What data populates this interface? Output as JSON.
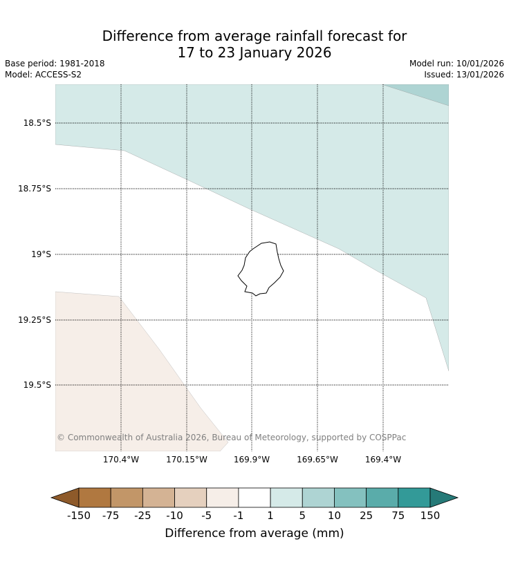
{
  "title": {
    "line1": "Difference from average rainfall forecast for",
    "line2": "17 to 23 January 2026"
  },
  "meta": {
    "base_period": "Base period: 1981-2018",
    "model": "Model: ACCESS-S2",
    "model_run": "Model run: 10/01/2026",
    "issued": "Issued: 13/01/2026"
  },
  "map": {
    "lat_labels": [
      "18.5°S",
      "18.75°S",
      "19°S",
      "19.25°S",
      "19.5°S"
    ],
    "lon_labels": [
      "170.4°W",
      "170.15°W",
      "169.9°W",
      "169.65°W",
      "169.4°W"
    ],
    "credit": "© Commonwealth of Australia 2026, Bureau of Meteorology, supported by COSPPac",
    "land_name": "niue-island",
    "colors": {
      "wet_light": "#d5eae8",
      "wet_medium": "#aed4d3",
      "dry_light": "#f6eee8",
      "neutral": "#ffffff",
      "grid": "#000000"
    }
  },
  "colorbar": {
    "ticks": [
      "-150",
      "-75",
      "-25",
      "-10",
      "-5",
      "-1",
      "1",
      "5",
      "10",
      "25",
      "75",
      "150"
    ],
    "colors": [
      "#8e5a2a",
      "#b07840",
      "#c29668",
      "#d4b394",
      "#e5d0be",
      "#f6eee8",
      "#ffffff",
      "#d5eae8",
      "#aed4d3",
      "#84c1bf",
      "#5aacaa",
      "#339a98",
      "#267a78"
    ],
    "label": "Difference from average (mm)"
  }
}
